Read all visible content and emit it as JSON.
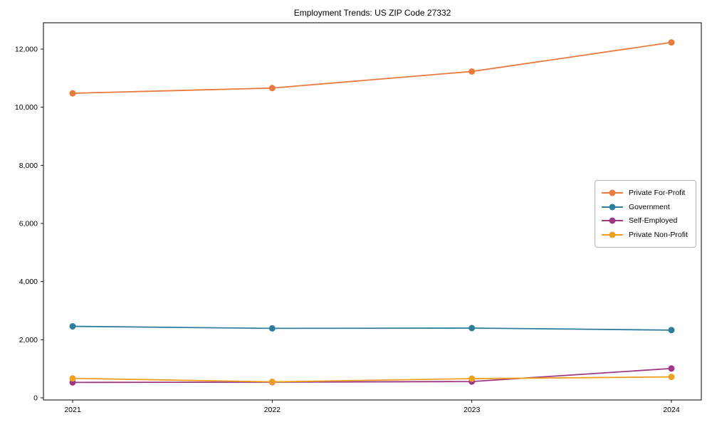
{
  "chart_data": {
    "type": "line",
    "title": "Employment Trends: US ZIP Code 27332",
    "categories": [
      "2021",
      "2022",
      "2023",
      "2024"
    ],
    "series": [
      {
        "name": "Private For-Profit",
        "color": "#E87A3C",
        "values": [
          10480,
          10660,
          11230,
          12230
        ]
      },
      {
        "name": "Government",
        "color": "#2F7E9E",
        "values": [
          2460,
          2390,
          2400,
          2330
        ]
      },
      {
        "name": "Self-Employed",
        "color": "#9D3886",
        "values": [
          530,
          540,
          560,
          1010
        ]
      },
      {
        "name": "Private Non-Profit",
        "color": "#EEA020",
        "values": [
          670,
          550,
          660,
          720
        ]
      }
    ],
    "xlabel": "",
    "ylabel": "",
    "ylim": [
      0,
      12900
    ],
    "yticks": [
      0,
      2000,
      4000,
      6000,
      8000,
      10000,
      12000
    ],
    "ytick_labels": [
      "0",
      "2,000",
      "4,000",
      "6,000",
      "8,000",
      "10,000",
      "12,000"
    ],
    "grid": false,
    "legend_position": "center right",
    "marker": "circle",
    "frame_color": "#000000",
    "background_color": "#ffffff"
  }
}
